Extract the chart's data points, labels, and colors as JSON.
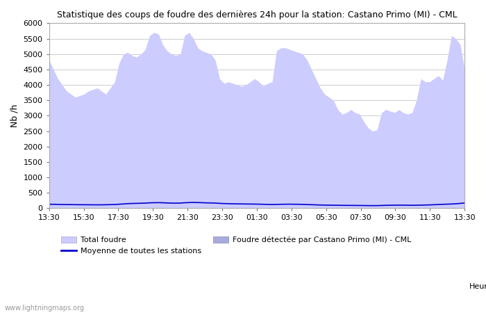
{
  "title": "Statistique des coups de foudre des dernières 24h pour la station: Castano Primo (MI) - CML",
  "ylabel": "Nb /h",
  "xlabel_legend": "Heure",
  "background_color": "#ffffff",
  "plot_bg_color": "#ffffff",
  "grid_color": "#cccccc",
  "fill_color_total": "#ccccff",
  "fill_color_station": "#aaaadd",
  "line_color_moyenne": "#0000cc",
  "x_ticks": [
    "13:30",
    "15:30",
    "17:30",
    "19:30",
    "21:30",
    "23:30",
    "01:30",
    "03:30",
    "05:30",
    "07:30",
    "09:30",
    "11:30",
    "13:30"
  ],
  "ylim": [
    0,
    6000
  ],
  "yticks": [
    0,
    500,
    1000,
    1500,
    2000,
    2500,
    3000,
    3500,
    4000,
    4500,
    5000,
    5500,
    6000
  ],
  "watermark": "www.lightningmaps.org",
  "legend_entries": [
    "Total foudre",
    "Foudre détectée par Castano Primo (MI) - CML",
    "Moyenne de toutes les stations"
  ],
  "total_foudre": [
    4800,
    4500,
    4200,
    4000,
    3800,
    3700,
    3600,
    3650,
    3700,
    3800,
    3850,
    3900,
    3800,
    3700,
    3900,
    4100,
    4700,
    5000,
    5050,
    4950,
    4900,
    5000,
    5150,
    5600,
    5700,
    5650,
    5300,
    5100,
    5000,
    4950,
    5000,
    5600,
    5700,
    5500,
    5200,
    5100,
    5050,
    5000,
    4800,
    4200,
    4050,
    4100,
    4050,
    4000,
    3950,
    4000,
    4100,
    4200,
    4100,
    3950,
    4050,
    4100,
    5100,
    5200,
    5200,
    5150,
    5100,
    5050,
    5000,
    4800,
    4500,
    4200,
    3900,
    3700,
    3600,
    3500,
    3200,
    3050,
    3100,
    3200,
    3100,
    3050,
    2800,
    2600,
    2500,
    2550,
    3100,
    3200,
    3150,
    3100,
    3200,
    3100,
    3050,
    3100,
    3500,
    4200,
    4100,
    4100,
    4200,
    4300,
    4150,
    4800,
    5600,
    5500,
    5300,
    4500
  ],
  "moyenne": [
    130,
    128,
    125,
    122,
    120,
    118,
    116,
    115,
    114,
    113,
    112,
    111,
    112,
    114,
    118,
    122,
    130,
    140,
    150,
    155,
    158,
    162,
    168,
    175,
    180,
    182,
    178,
    172,
    168,
    165,
    168,
    178,
    185,
    188,
    185,
    180,
    175,
    172,
    168,
    158,
    152,
    148,
    145,
    142,
    140,
    138,
    136,
    135,
    132,
    128,
    125,
    122,
    125,
    128,
    130,
    132,
    130,
    128,
    125,
    120,
    115,
    110,
    106,
    102,
    100,
    98,
    96,
    94,
    93,
    92,
    91,
    90,
    88,
    86,
    85,
    86,
    90,
    95,
    98,
    100,
    102,
    100,
    98,
    97,
    98,
    102,
    105,
    108,
    115,
    122,
    128,
    132,
    138,
    145,
    158,
    168
  ]
}
